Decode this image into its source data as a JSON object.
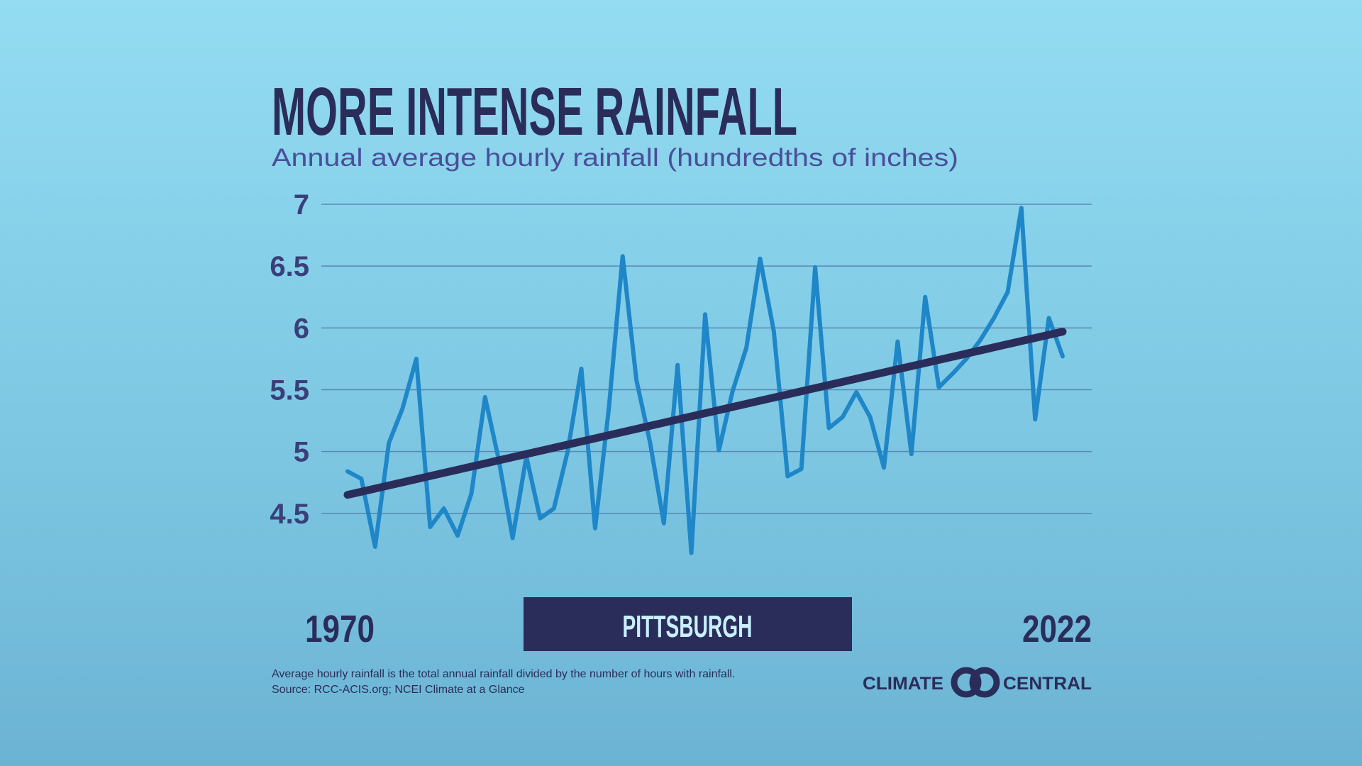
{
  "chart_data": {
    "type": "line",
    "title": "MORE INTENSE RAINFALL",
    "subtitle": "Annual average hourly rainfall (hundredths of inches)",
    "x": [
      1970,
      1971,
      1972,
      1973,
      1974,
      1975,
      1976,
      1977,
      1978,
      1979,
      1980,
      1981,
      1982,
      1983,
      1984,
      1985,
      1986,
      1987,
      1988,
      1989,
      1990,
      1991,
      1992,
      1993,
      1994,
      1995,
      1996,
      1997,
      1998,
      1999,
      2000,
      2001,
      2002,
      2003,
      2004,
      2005,
      2006,
      2007,
      2008,
      2009,
      2010,
      2011,
      2012,
      2013,
      2014,
      2015,
      2016,
      2017,
      2018,
      2019,
      2020,
      2021,
      2022
    ],
    "series": [
      {
        "color": "#1f86c8",
        "values": [
          4.84,
          4.78,
          4.23,
          5.07,
          5.35,
          5.75,
          4.39,
          4.54,
          4.32,
          4.66,
          5.44,
          4.93,
          4.3,
          4.96,
          4.46,
          4.54,
          5.0,
          5.67,
          4.38,
          5.35,
          6.58,
          5.58,
          5.07,
          4.42,
          5.7,
          4.18,
          6.11,
          5.01,
          5.49,
          5.84,
          6.56,
          5.97,
          4.8,
          4.86,
          6.49,
          5.19,
          5.28,
          5.48,
          5.28,
          4.87,
          5.89,
          4.98,
          6.25,
          5.52,
          5.63,
          5.75,
          5.9,
          6.08,
          6.29,
          6.97,
          5.26,
          6.08,
          5.77
        ]
      }
    ],
    "trend": {
      "x": [
        1970,
        2022
      ],
      "values": [
        4.65,
        5.97
      ],
      "color": "#2a2d5a"
    },
    "xlim": [
      1970,
      2022
    ],
    "xticks": [
      1970,
      2022
    ],
    "ylim": [
      4,
      7
    ],
    "yticks": [
      4.5,
      5,
      5.5,
      6,
      6.5,
      7
    ],
    "grid": true,
    "location": "PITTSBURGH",
    "notes": [
      "Average hourly rainfall is the total annual rainfall divided by the number of hours with rainfall.",
      "Source: RCC-ACIS.org; NCEI Climate at a Glance"
    ],
    "brand": [
      "CLIMATE",
      "CENTRAL"
    ]
  }
}
